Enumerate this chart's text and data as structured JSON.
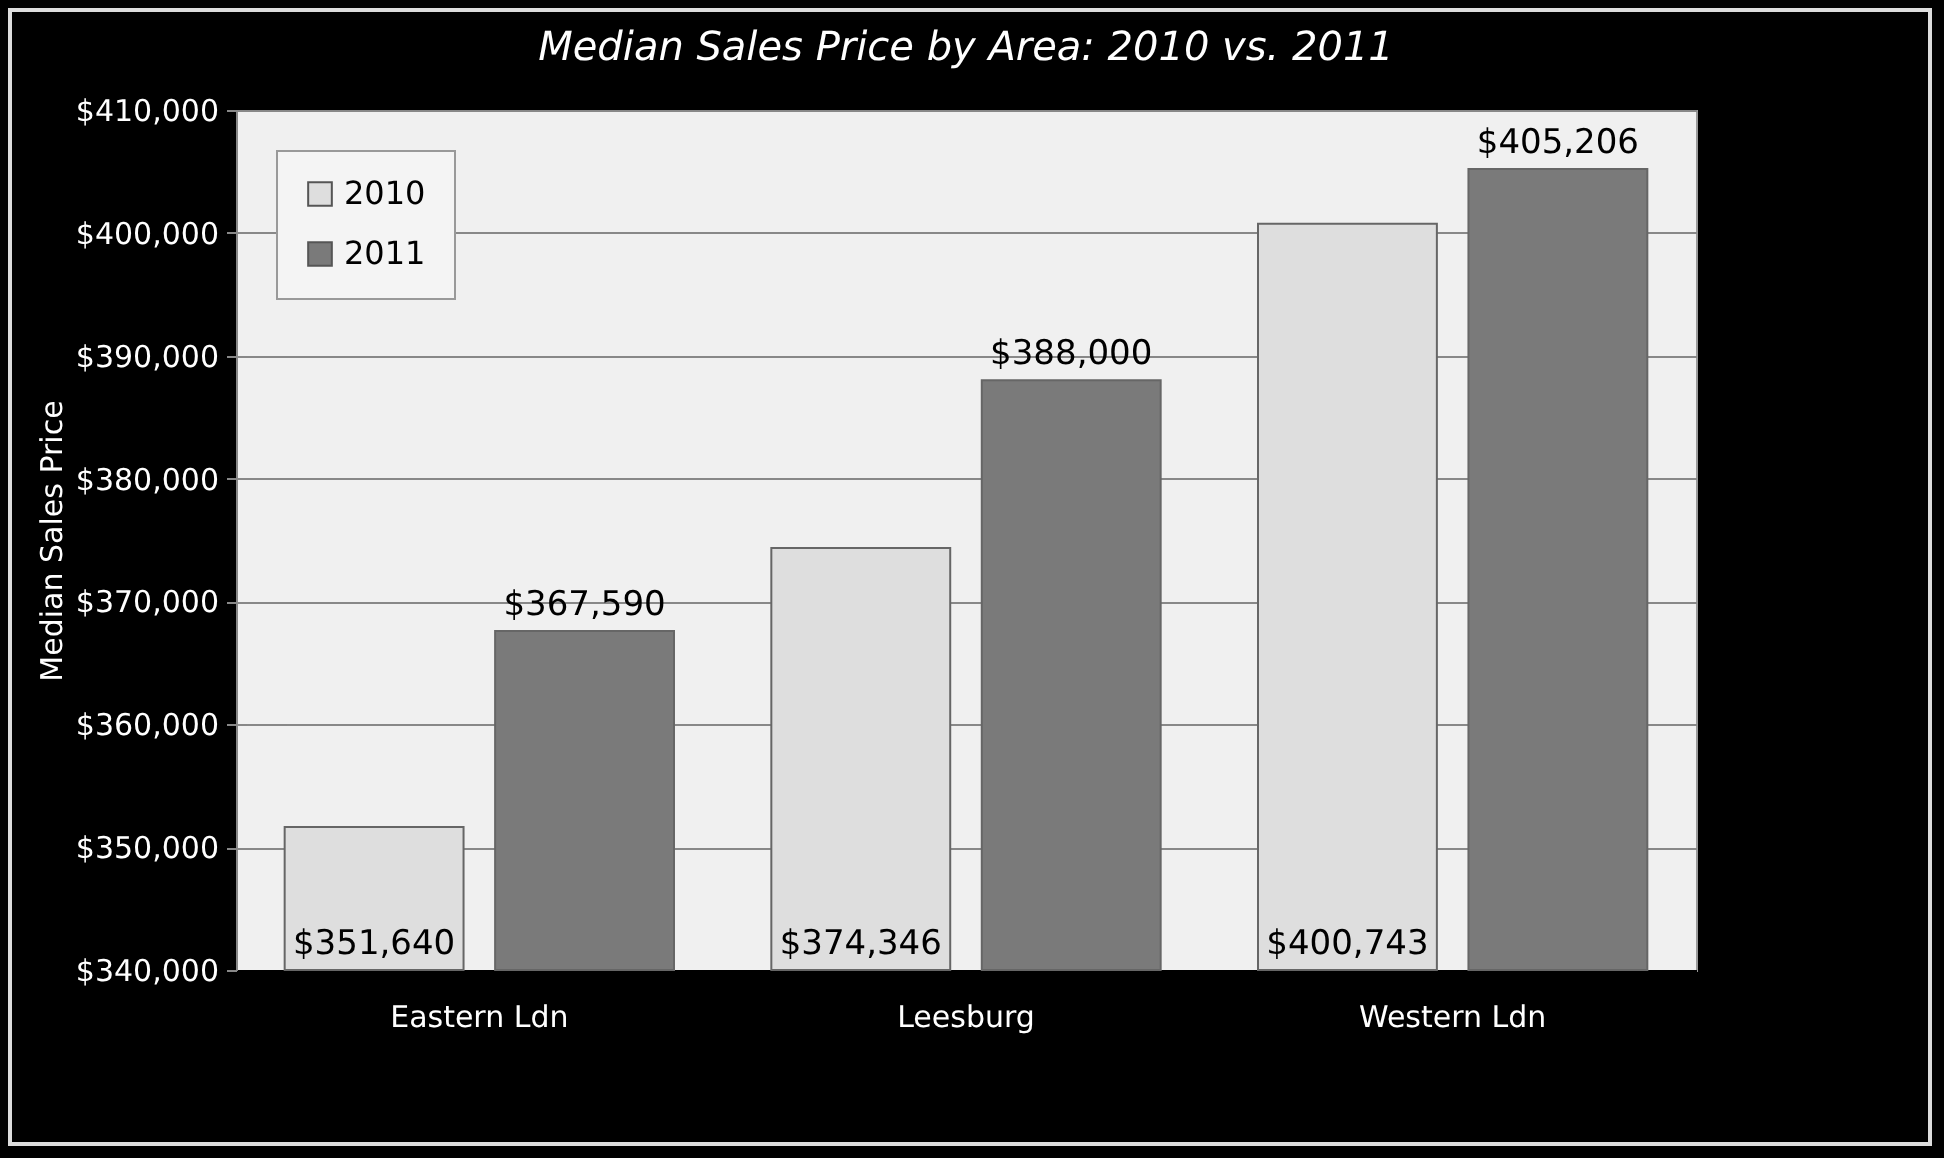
{
  "chart_data": {
    "type": "bar",
    "title": "Median Sales Price by Area:  2010 vs. 2011",
    "ylabel": "Median Sales Price",
    "categories": [
      "Eastern Ldn",
      "Leesburg",
      "Western Ldn"
    ],
    "series": [
      {
        "name": "2010",
        "color": "#dedede",
        "values": [
          351640,
          374346,
          400743
        ],
        "value_labels": [
          "$351,640",
          "$374,346",
          "$400,743"
        ]
      },
      {
        "name": "2011",
        "color": "#7a7a7a",
        "values": [
          367590,
          388000,
          405206
        ],
        "value_labels": [
          "$367,590",
          "$388,000",
          "$405,206"
        ]
      }
    ],
    "ylim": [
      340000,
      410000
    ],
    "yticks": [
      {
        "value": 340000,
        "label": "$340,000"
      },
      {
        "value": 350000,
        "label": "$350,000"
      },
      {
        "value": 360000,
        "label": "$360,000"
      },
      {
        "value": 370000,
        "label": "$370,000"
      },
      {
        "value": 380000,
        "label": "$380,000"
      },
      {
        "value": 390000,
        "label": "$390,000"
      },
      {
        "value": 400000,
        "label": "$400,000"
      },
      {
        "value": 410000,
        "label": "$410,000"
      }
    ],
    "grid": "y",
    "legend": "top left"
  }
}
